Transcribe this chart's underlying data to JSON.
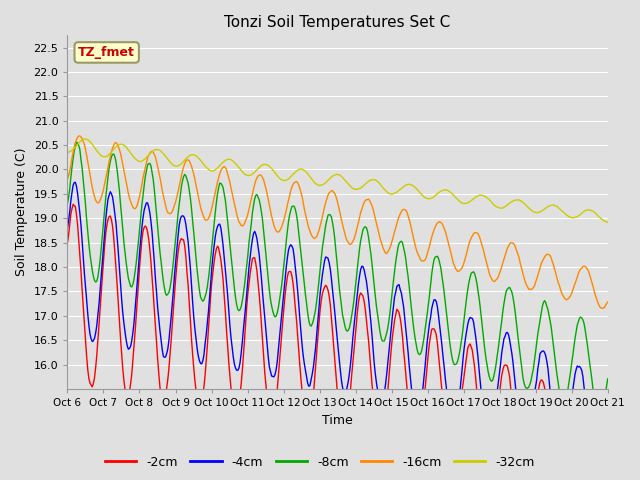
{
  "title": "Tonzi Soil Temperatures Set C",
  "xlabel": "Time",
  "ylabel": "Soil Temperature (C)",
  "ylim": [
    15.5,
    22.75
  ],
  "yticks": [
    16.0,
    16.5,
    17.0,
    17.5,
    18.0,
    18.5,
    19.0,
    19.5,
    20.0,
    20.5,
    21.0,
    21.5,
    22.0,
    22.5
  ],
  "bg_color": "#e0e0e0",
  "plot_bg_color": "#e0e0e0",
  "grid_color": "#ffffff",
  "legend_label": "TZ_fmet",
  "legend_bg": "#ffffcc",
  "legend_border": "#999966",
  "series_colors": [
    "#ff0000",
    "#0000ff",
    "#00aa00",
    "#ff8800",
    "#cccc00"
  ],
  "series_labels": [
    "-2cm",
    "-4cm",
    "-8cm",
    "-16cm",
    "-32cm"
  ],
  "n_points": 480,
  "x_days": 15,
  "xtick_days": [
    0,
    1,
    2,
    3,
    4,
    5,
    6,
    7,
    8,
    9,
    10,
    11,
    12,
    13,
    14,
    15
  ],
  "xtick_labels": [
    "Oct 6",
    "Oct 7",
    "Oct 8",
    "Oct 9",
    "Oct 10",
    "Oct 11",
    "Oct 12",
    "Oct 13",
    "Oct 14",
    "Oct 15",
    "Oct 16",
    "Oct 17",
    "Oct 18",
    "Oct 19",
    "Oct 20",
    "Oct 21"
  ]
}
